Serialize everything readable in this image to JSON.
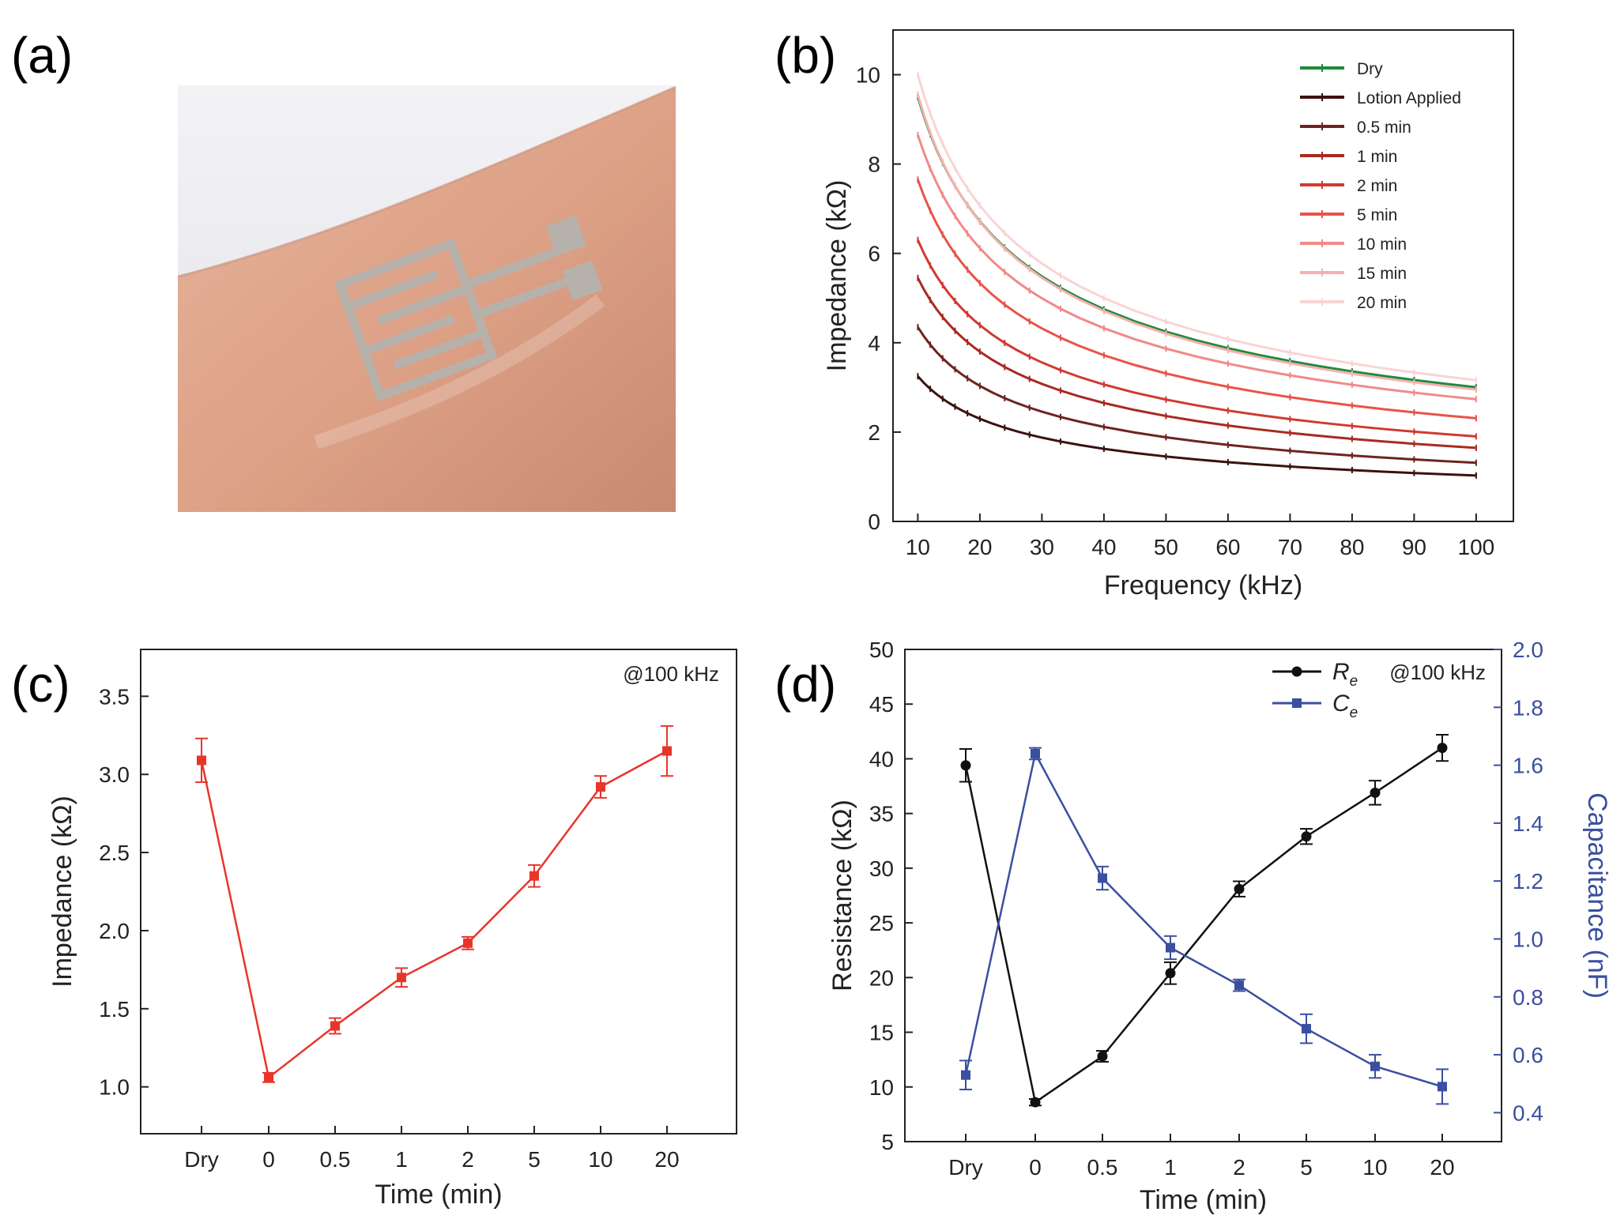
{
  "panels": {
    "a": {
      "label": "(a)"
    },
    "b": {
      "label": "(b)"
    },
    "c": {
      "label": "(c)"
    },
    "d": {
      "label": "(d)"
    }
  },
  "chart_data": [
    {
      "panel": "b",
      "type": "line",
      "xlabel": "Frequency (kHz)",
      "ylabel": "Impedance (kΩ)",
      "xlim": [
        6,
        106
      ],
      "ylim": [
        0,
        11
      ],
      "xticks": [
        10,
        20,
        30,
        40,
        50,
        60,
        70,
        80,
        90,
        100
      ],
      "yticks": [
        0,
        2,
        4,
        6,
        8,
        10
      ],
      "legend_position": "top-right",
      "x": [
        10,
        11,
        12,
        13,
        14,
        15,
        16,
        17,
        18,
        19,
        20,
        22,
        24,
        26,
        28,
        30,
        33,
        36,
        40,
        45,
        50,
        55,
        60,
        65,
        70,
        75,
        80,
        85,
        90,
        95,
        100
      ],
      "series_model": "Z(f) = a / (f/10)^p",
      "series": [
        {
          "name": "Dry",
          "color": "#1f8a3c",
          "a": 9.5,
          "p": 0.5
        },
        {
          "name": "Lotion Applied",
          "color": "#3a1210",
          "a": 3.25,
          "p": 0.5
        },
        {
          "name": "0.5 min",
          "color": "#6e2420",
          "a": 4.35,
          "p": 0.52
        },
        {
          "name": "1 min",
          "color": "#a82a22",
          "a": 5.45,
          "p": 0.52
        },
        {
          "name": "2 min",
          "color": "#d03a30",
          "a": 6.3,
          "p": 0.52
        },
        {
          "name": "5 min",
          "color": "#e8534a",
          "a": 7.65,
          "p": 0.52
        },
        {
          "name": "10 min",
          "color": "#f08a8a",
          "a": 8.65,
          "p": 0.5
        },
        {
          "name": "15 min",
          "color": "#f6b0b0",
          "a": 9.55,
          "p": 0.51
        },
        {
          "name": "20 min",
          "color": "#f9d4d4",
          "a": 10.0,
          "p": 0.5
        }
      ]
    },
    {
      "panel": "c",
      "type": "line",
      "annotation": "@100 kHz",
      "xlabel": "Time (min)",
      "ylabel": "Impedance (kΩ)",
      "ylim": [
        0.7,
        3.8
      ],
      "yticks": [
        "1.0",
        "1.5",
        "2.0",
        "2.5",
        "3.0",
        "3.5"
      ],
      "categories": [
        "Dry",
        "0",
        "0.5",
        "1",
        "2",
        "5",
        "10",
        "20"
      ],
      "series": [
        {
          "name": "Impedance",
          "color": "#e8352a",
          "values": [
            3.09,
            1.06,
            1.39,
            1.7,
            1.92,
            2.35,
            2.92,
            3.15
          ],
          "errors": [
            0.14,
            0.03,
            0.05,
            0.06,
            0.04,
            0.07,
            0.07,
            0.16
          ]
        }
      ]
    },
    {
      "panel": "d",
      "type": "line",
      "annotation": "@100 kHz",
      "xlabel": "Time (min)",
      "ylabel": "Resistance (kΩ)",
      "y2label": "Capacitance (nF)",
      "ylim": [
        5,
        50
      ],
      "y2lim": [
        0.3,
        2.0
      ],
      "yticks": [
        5,
        10,
        15,
        20,
        25,
        30,
        35,
        40,
        45,
        50
      ],
      "y2ticks": [
        "0.4",
        "0.6",
        "0.8",
        "1.0",
        "1.2",
        "1.4",
        "1.6",
        "1.8",
        "2.0"
      ],
      "categories": [
        "Dry",
        "0",
        "0.5",
        "1",
        "2",
        "5",
        "10",
        "20"
      ],
      "legend_position": "top-right",
      "series": [
        {
          "name": "R",
          "subscript": "e",
          "axis": "left",
          "color": "#111111",
          "values": [
            39.4,
            8.6,
            12.8,
            20.4,
            28.1,
            32.9,
            36.9,
            41.0
          ],
          "errors": [
            1.5,
            0.3,
            0.5,
            1.0,
            0.7,
            0.7,
            1.1,
            1.2
          ]
        },
        {
          "name": "C",
          "subscript": "e",
          "axis": "right",
          "color": "#3a4fa0",
          "values": [
            0.53,
            1.64,
            1.21,
            0.97,
            0.84,
            0.69,
            0.56,
            0.49
          ],
          "errors": [
            0.05,
            0.02,
            0.04,
            0.04,
            0.02,
            0.05,
            0.04,
            0.06
          ]
        }
      ]
    }
  ]
}
